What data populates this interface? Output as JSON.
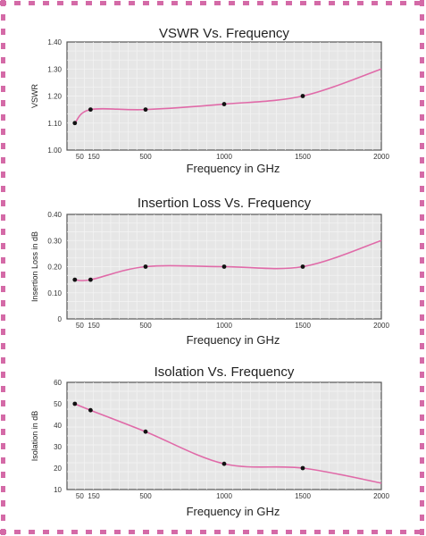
{
  "page": {
    "border_color": "#d46aa7",
    "line_color": "#e06aa8",
    "plot_bg": "#e6e6e6",
    "grid_color": "#f4f4f4"
  },
  "chart_data": [
    {
      "type": "line",
      "title": "VSWR Vs. Frequency",
      "xlabel": "Frequency in GHz",
      "ylabel": "VSWR",
      "x_tick_labels": [
        "50",
        "150",
        "500",
        "1000",
        "1500",
        "2000"
      ],
      "y_tick_labels": [
        "1.00",
        "1.10",
        "1.20",
        "1.30",
        "1.40"
      ],
      "xlim": [
        0,
        2000
      ],
      "ylim": [
        1.0,
        1.4
      ],
      "grid": true,
      "series": [
        {
          "x": [
            50,
            150,
            500,
            1000,
            1500,
            2000
          ],
          "y": [
            1.1,
            1.15,
            1.15,
            1.17,
            1.2,
            1.3
          ]
        }
      ]
    },
    {
      "type": "line",
      "title": "Insertion Loss Vs. Frequency",
      "xlabel": "Frequency in GHz",
      "ylabel": "Insertion Loss in dB",
      "x_tick_labels": [
        "50",
        "150",
        "500",
        "1000",
        "1500",
        "2000"
      ],
      "y_tick_labels": [
        "0",
        "0.10",
        "0.20",
        "0.30",
        "0.40"
      ],
      "xlim": [
        0,
        2000
      ],
      "ylim": [
        0,
        0.4
      ],
      "grid": true,
      "series": [
        {
          "x": [
            50,
            150,
            500,
            1000,
            1500,
            2000
          ],
          "y": [
            0.15,
            0.15,
            0.2,
            0.2,
            0.2,
            0.3
          ]
        }
      ]
    },
    {
      "type": "line",
      "title": "Isolation Vs. Frequency",
      "xlabel": "Frequency in GHz",
      "ylabel": "Isolation in dB",
      "x_tick_labels": [
        "50",
        "150",
        "500",
        "1000",
        "1500",
        "2000"
      ],
      "y_tick_labels": [
        "10",
        "20",
        "30",
        "40",
        "50",
        "60"
      ],
      "xlim": [
        0,
        2000
      ],
      "ylim": [
        10,
        60
      ],
      "grid": true,
      "series": [
        {
          "x": [
            50,
            150,
            500,
            1000,
            1500,
            2000
          ],
          "y": [
            50,
            47,
            37,
            22,
            20,
            13
          ]
        }
      ]
    }
  ]
}
